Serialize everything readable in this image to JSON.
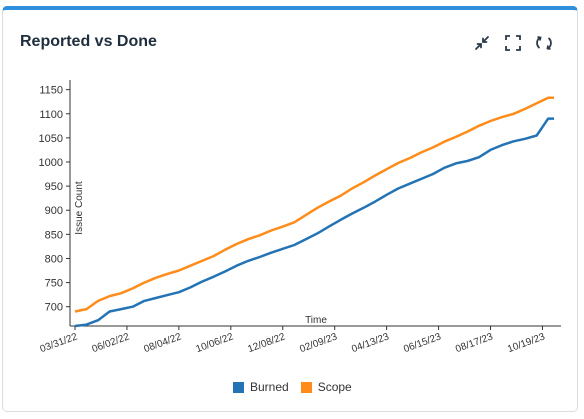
{
  "widget": {
    "title": "Reported vs Done",
    "icons": [
      "minimize-icon",
      "fullscreen-icon",
      "refresh-icon"
    ]
  },
  "colors": {
    "accent": "#2f8fdf",
    "burned": "#2474b5",
    "scope": "#ff8c1a"
  },
  "chart_data": {
    "type": "line",
    "title": "",
    "xlabel": "Time",
    "ylabel": "Issue Count",
    "x_tick_labels": [
      "03/31/22",
      "06/02/22",
      "08/04/22",
      "10/06/22",
      "12/08/22",
      "02/09/23",
      "04/13/23",
      "06/15/23",
      "08/17/23",
      "10/19/23"
    ],
    "y_ticks": [
      700,
      750,
      800,
      850,
      900,
      950,
      1000,
      1050,
      1100,
      1150
    ],
    "ylim": [
      660,
      1170
    ],
    "x": [
      "03/31/22",
      "04/14/22",
      "04/28/22",
      "05/12/22",
      "05/26/22",
      "06/09/22",
      "06/23/22",
      "07/07/22",
      "07/21/22",
      "08/04/22",
      "08/18/22",
      "09/01/22",
      "09/15/22",
      "09/29/22",
      "10/13/22",
      "10/27/22",
      "11/10/22",
      "11/24/22",
      "12/08/22",
      "12/22/22",
      "01/05/23",
      "01/19/23",
      "02/02/23",
      "02/16/23",
      "03/02/23",
      "03/16/23",
      "03/30/23",
      "04/13/23",
      "04/27/23",
      "05/11/23",
      "05/25/23",
      "06/08/23",
      "06/22/23",
      "07/06/23",
      "07/20/23",
      "08/03/23",
      "08/17/23",
      "08/31/23",
      "09/14/23",
      "09/28/23",
      "10/12/23",
      "10/26/23",
      "11/02/23"
    ],
    "series": [
      {
        "name": "Burned",
        "values": [
          660,
          663,
          672,
          690,
          695,
          700,
          712,
          718,
          724,
          730,
          740,
          752,
          762,
          773,
          785,
          795,
          803,
          812,
          820,
          828,
          840,
          852,
          866,
          880,
          893,
          905,
          918,
          932,
          945,
          955,
          965,
          975,
          988,
          997,
          1002,
          1010,
          1025,
          1035,
          1043,
          1048,
          1055,
          1090,
          1090
        ]
      },
      {
        "name": "Scope",
        "values": [
          690,
          695,
          712,
          722,
          728,
          738,
          750,
          760,
          768,
          775,
          785,
          795,
          805,
          818,
          830,
          840,
          848,
          858,
          866,
          875,
          890,
          905,
          918,
          930,
          945,
          958,
          972,
          985,
          998,
          1008,
          1020,
          1030,
          1042,
          1052,
          1063,
          1075,
          1085,
          1093,
          1100,
          1110,
          1122,
          1133,
          1133
        ]
      }
    ],
    "grid": false,
    "legend_position": "bottom"
  }
}
